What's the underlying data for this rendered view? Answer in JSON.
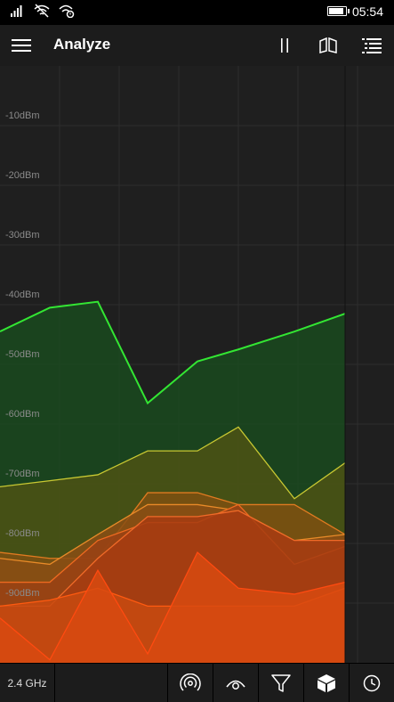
{
  "status_bar": {
    "time": "05:54",
    "icons": [
      "signal-icon",
      "wifi-off-icon",
      "wifi-settings-icon",
      "battery-icon"
    ]
  },
  "app_bar": {
    "title": "Analyze",
    "buttons": [
      "hamburger-menu-icon",
      "pause-icon",
      "open-book-icon",
      "list-view-icon"
    ]
  },
  "chart_data": {
    "type": "area",
    "y_tick_labels": [
      "-10dBm",
      "-20dBm",
      "-30dBm",
      "-40dBm",
      "-50dBm",
      "-60dBm",
      "-70dBm",
      "-80dBm",
      "-90dBm"
    ],
    "ylim": [
      -100,
      0
    ],
    "grid": true,
    "series": [
      {
        "color": "#33e633",
        "fill": "#1a4a1f",
        "values": [
          -44.5,
          -40.5,
          -39.5,
          -56.5,
          -49.5,
          -47.5,
          -44.5,
          -41.5
        ]
      },
      {
        "color": "#c8c832",
        "fill": "#4e5214",
        "values": [
          -70.5,
          -69.5,
          -68.5,
          -64.5,
          -64.5,
          -60.5,
          -72.5,
          -66.5
        ]
      },
      {
        "color": "#e07a20",
        "fill": "#7e5010",
        "values": [
          -81.5,
          -82.5,
          -82.5,
          -71.5,
          -71.5,
          -73.5,
          -73.5,
          -78.5
        ]
      },
      {
        "color": "#e88a28",
        "fill": "#8a4e14",
        "values": [
          -82.5,
          -83.5,
          -78.5,
          -73.5,
          -73.5,
          -74.5,
          -79.5,
          -78.5
        ]
      },
      {
        "color": "#ee6a20",
        "fill": "#9a4214",
        "values": [
          -86.5,
          -86.5,
          -79.5,
          -76.5,
          -76.5,
          -73.5,
          -83.5,
          -80.5
        ]
      },
      {
        "color": "#f06a28",
        "fill": "#a63c12",
        "values": [
          -90.5,
          -90.5,
          -82.5,
          -75.5,
          -75.5,
          -74.5,
          -79.5,
          -79.5
        ]
      },
      {
        "color": "#ff5a10",
        "fill": "#c84a10",
        "values": [
          -90.5,
          -89.5,
          -87.5,
          -90.5,
          -90.5,
          -90.5,
          -90.5,
          -87.5
        ]
      },
      {
        "color": "#ff4a10",
        "fill": "#d84a10",
        "values": [
          -92.5,
          -99.5,
          -84.5,
          -98.5,
          -81.5,
          -87.5,
          -88.5,
          -86.5
        ]
      }
    ]
  },
  "bottom_bar": {
    "band": "2.4 GHz",
    "buttons": [
      "access-point-icon",
      "eye-icon",
      "filter-icon",
      "cube-icon",
      "clock-icon"
    ]
  }
}
